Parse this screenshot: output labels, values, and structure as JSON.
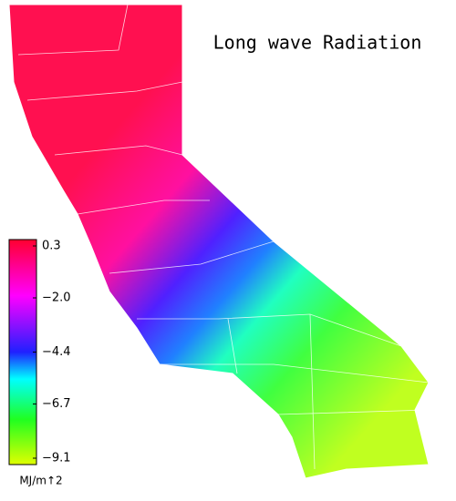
{
  "map": {
    "title": "Long wave Radiation",
    "colorbar": {
      "lim": [
        -9.1,
        0.3
      ],
      "ticks": [
        0.3,
        {
          "value": -2.0,
          "label": "−2.0"
        },
        {
          "value": -4.4,
          "label": "−4.4"
        },
        {
          "value": -6.7,
          "label": "−6.7"
        },
        {
          "value": -9.1,
          "label": "−9.1"
        }
      ],
      "unit": "MJ/m↑2"
    }
  }
}
